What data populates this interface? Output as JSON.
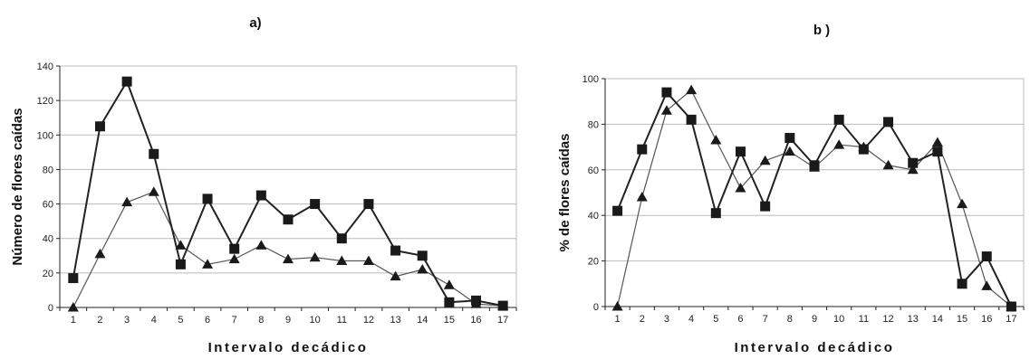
{
  "chart_data": [
    {
      "type": "line",
      "title": "a)",
      "xlabel": "Intervalo decádico",
      "ylabel": "Número de flores caídas",
      "ylim": [
        0,
        140
      ],
      "yticks": [
        0,
        20,
        40,
        60,
        80,
        100,
        120,
        140
      ],
      "grid": true,
      "x": [
        1,
        2,
        3,
        4,
        5,
        6,
        7,
        8,
        9,
        10,
        11,
        12,
        13,
        14,
        15,
        16,
        17
      ],
      "series": [
        {
          "marker": "square",
          "values": [
            17,
            105,
            131,
            89,
            25,
            63,
            34,
            65,
            51,
            60,
            40,
            60,
            33,
            30,
            3,
            4,
            1
          ]
        },
        {
          "marker": "triangle",
          "values": [
            0,
            31,
            61,
            67,
            36,
            25,
            28,
            36,
            28,
            29,
            27,
            27,
            18,
            22,
            13,
            2,
            1
          ]
        }
      ]
    },
    {
      "type": "line",
      "title": "b )",
      "xlabel": "Intervalo decádico",
      "ylabel": "% de flores caídas",
      "ylim": [
        0,
        100
      ],
      "yticks": [
        0,
        20,
        40,
        60,
        80,
        100
      ],
      "grid": true,
      "x": [
        1,
        2,
        3,
        4,
        5,
        6,
        7,
        8,
        9,
        10,
        11,
        12,
        13,
        14,
        15,
        16,
        17
      ],
      "series": [
        {
          "marker": "square",
          "values": [
            42,
            69,
            94,
            82,
            41,
            68,
            44,
            74,
            62,
            82,
            69,
            81,
            63,
            68,
            10,
            22,
            0
          ]
        },
        {
          "marker": "triangle",
          "values": [
            0,
            48,
            86,
            95,
            73,
            52,
            64,
            68,
            61,
            71,
            70,
            62,
            60,
            72,
            45,
            9,
            0
          ]
        }
      ]
    }
  ],
  "colors": {
    "line": "#222222",
    "marker": "#1a1a1a",
    "triangle_line": "#555555",
    "grid": "#bbbbbb",
    "axis": "#222222"
  }
}
